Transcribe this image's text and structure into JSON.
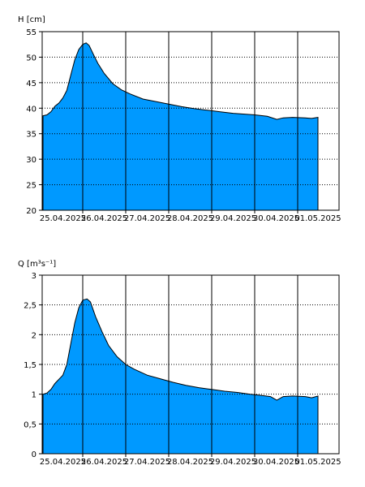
{
  "chart_data": [
    {
      "type": "area",
      "ylabel": "H [cm]",
      "ylim": [
        20,
        55
      ],
      "yticks": [
        20,
        25,
        30,
        35,
        40,
        45,
        50,
        55
      ],
      "ytick_labels": [
        "20",
        "25",
        "30",
        "35",
        "40",
        "45",
        "50",
        "55"
      ],
      "xticks": [
        "25.04.2025",
        "26.04.2025",
        "27.04.2025",
        "28.04.2025",
        "29.04.2025",
        "30.04.2025",
        "01.05.2025"
      ],
      "grid": "dotted horizontal at y ticks, solid vertical at day boundaries",
      "fill_color": "#0099ff",
      "points": [
        [
          0.0,
          38.5
        ],
        [
          0.1,
          38.7
        ],
        [
          0.2,
          39.3
        ],
        [
          0.3,
          40.4
        ],
        [
          0.4,
          41.0
        ],
        [
          0.5,
          42.0
        ],
        [
          0.6,
          43.5
        ],
        [
          0.7,
          46.5
        ],
        [
          0.8,
          49.5
        ],
        [
          0.9,
          51.5
        ],
        [
          1.0,
          52.5
        ],
        [
          1.08,
          52.8
        ],
        [
          1.15,
          52.3
        ],
        [
          1.25,
          50.5
        ],
        [
          1.35,
          48.8
        ],
        [
          1.5,
          46.8
        ],
        [
          1.7,
          44.8
        ],
        [
          1.9,
          43.6
        ],
        [
          2.1,
          42.8
        ],
        [
          2.4,
          41.8
        ],
        [
          2.7,
          41.3
        ],
        [
          3.0,
          40.8
        ],
        [
          3.3,
          40.3
        ],
        [
          3.6,
          39.9
        ],
        [
          3.9,
          39.6
        ],
        [
          4.2,
          39.3
        ],
        [
          4.5,
          39.0
        ],
        [
          4.8,
          38.8
        ],
        [
          5.0,
          38.7
        ],
        [
          5.2,
          38.4
        ],
        [
          5.35,
          37.8
        ],
        [
          5.45,
          38.1
        ],
        [
          5.6,
          38.2
        ],
        [
          5.8,
          38.1
        ],
        [
          5.9,
          38.0
        ],
        [
          6.0,
          38.2
        ]
      ]
    },
    {
      "type": "area",
      "ylabel": "Q [m³s⁻¹]",
      "ylim": [
        0,
        3
      ],
      "yticks": [
        0,
        0.5,
        1,
        1.5,
        2,
        2.5,
        3
      ],
      "ytick_labels": [
        "0",
        "0,5",
        "1",
        "1,5",
        "2",
        "2,5",
        "3"
      ],
      "xticks": [
        "25.04.2025",
        "26.04.2025",
        "27.04.2025",
        "28.04.2025",
        "29.04.2025",
        "30.04.2025",
        "01.05.2025"
      ],
      "grid": "dotted horizontal at y ticks, solid vertical at day boundaries",
      "fill_color": "#0099ff",
      "points": [
        [
          0.0,
          1.0
        ],
        [
          0.1,
          1.02
        ],
        [
          0.2,
          1.08
        ],
        [
          0.3,
          1.18
        ],
        [
          0.4,
          1.25
        ],
        [
          0.5,
          1.32
        ],
        [
          0.6,
          1.5
        ],
        [
          0.7,
          1.85
        ],
        [
          0.8,
          2.2
        ],
        [
          0.9,
          2.45
        ],
        [
          1.0,
          2.58
        ],
        [
          1.1,
          2.6
        ],
        [
          1.18,
          2.55
        ],
        [
          1.3,
          2.3
        ],
        [
          1.45,
          2.05
        ],
        [
          1.6,
          1.82
        ],
        [
          1.8,
          1.63
        ],
        [
          2.0,
          1.5
        ],
        [
          2.2,
          1.42
        ],
        [
          2.5,
          1.32
        ],
        [
          2.8,
          1.26
        ],
        [
          3.1,
          1.2
        ],
        [
          3.4,
          1.15
        ],
        [
          3.7,
          1.11
        ],
        [
          4.0,
          1.08
        ],
        [
          4.3,
          1.05
        ],
        [
          4.6,
          1.03
        ],
        [
          4.9,
          1.0
        ],
        [
          5.1,
          0.98
        ],
        [
          5.25,
          0.96
        ],
        [
          5.35,
          0.9
        ],
        [
          5.45,
          0.96
        ],
        [
          5.6,
          0.97
        ],
        [
          5.8,
          0.96
        ],
        [
          5.9,
          0.94
        ],
        [
          6.0,
          0.97
        ]
      ]
    }
  ]
}
